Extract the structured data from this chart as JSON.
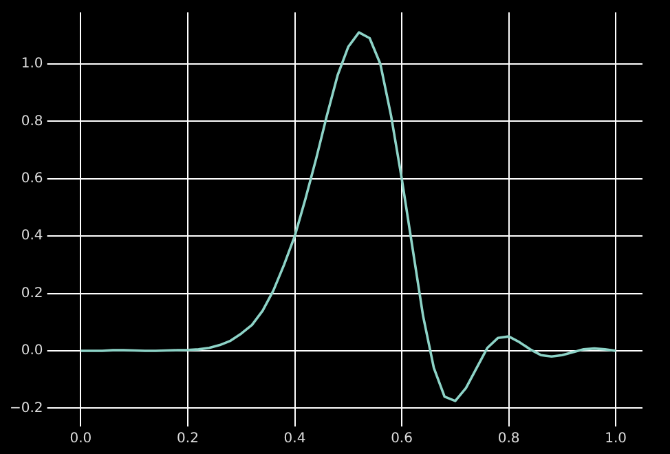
{
  "chart_data": {
    "type": "line",
    "x": [
      0,
      0.02,
      0.04,
      0.06,
      0.08,
      0.1,
      0.12,
      0.14,
      0.16,
      0.18,
      0.2,
      0.22,
      0.24,
      0.26,
      0.28,
      0.3,
      0.32,
      0.34,
      0.36,
      0.38,
      0.4,
      0.42,
      0.44,
      0.46,
      0.48,
      0.5,
      0.52,
      0.54,
      0.56,
      0.58,
      0.6,
      0.62,
      0.64,
      0.66,
      0.68,
      0.7,
      0.72,
      0.74,
      0.76,
      0.78,
      0.8,
      0.82,
      0.84,
      0.86,
      0.88,
      0.9,
      0.92,
      0.94,
      0.96,
      0.98,
      1
    ],
    "series": [
      {
        "color": "#8dd3c7",
        "values": [
          0,
          0,
          0,
          0.002,
          0.002,
          0.001,
          0,
          0,
          0.001,
          0.002,
          0.003,
          0.005,
          0.01,
          0.02,
          0.035,
          0.06,
          0.09,
          0.14,
          0.21,
          0.3,
          0.4,
          0.53,
          0.67,
          0.82,
          0.96,
          1.06,
          1.11,
          1.09,
          1,
          0.82,
          0.6,
          0.36,
          0.12,
          -0.06,
          -0.16,
          -0.175,
          -0.13,
          -0.06,
          0.01,
          0.045,
          0.05,
          0.03,
          0.005,
          -0.015,
          -0.02,
          -0.015,
          -0.005,
          0.005,
          0.008,
          0.005,
          0
        ]
      }
    ],
    "xlim": [
      -0.05,
      1.05
    ],
    "ylim": [
      -0.24,
      1.18
    ],
    "xticks": [
      {
        "value": 0,
        "label": "0.0"
      },
      {
        "value": 0.2,
        "label": "0.2"
      },
      {
        "value": 0.4,
        "label": "0.4"
      },
      {
        "value": 0.6,
        "label": "0.6"
      },
      {
        "value": 0.8,
        "label": "0.8"
      },
      {
        "value": 1,
        "label": "1.0"
      }
    ],
    "yticks": [
      {
        "value": -0.2,
        "label": "−0.2"
      },
      {
        "value": 0,
        "label": "0.0"
      },
      {
        "value": 0.2,
        "label": "0.2"
      },
      {
        "value": 0.4,
        "label": "0.4"
      },
      {
        "value": 0.6,
        "label": "0.6"
      },
      {
        "value": 0.8,
        "label": "0.8"
      },
      {
        "value": 1,
        "label": "1.0"
      }
    ],
    "grid": true,
    "legend": false,
    "marker": "none",
    "line_style": "solid"
  }
}
